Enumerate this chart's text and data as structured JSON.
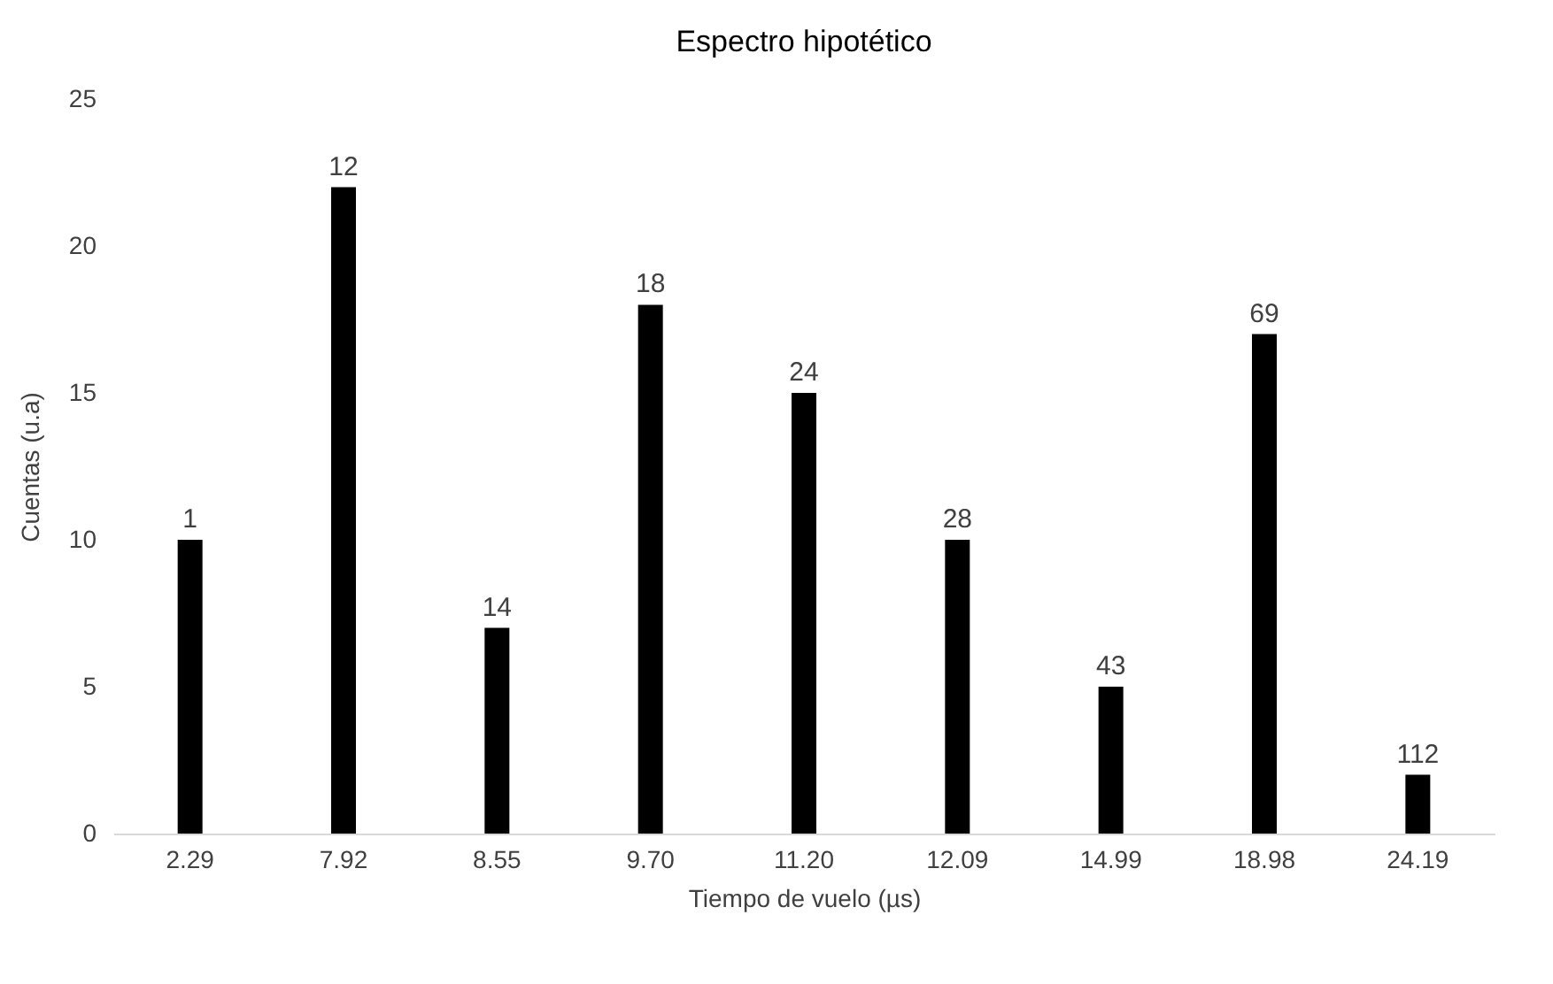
{
  "chart_data": {
    "type": "bar",
    "title": "Espectro hipotético",
    "xlabel": "Tiempo de vuelo (µs)",
    "ylabel": "Cuentas (u.a)",
    "categories": [
      "2.29",
      "7.92",
      "8.55",
      "9.70",
      "11.20",
      "12.09",
      "14.99",
      "18.98",
      "24.19"
    ],
    "values": [
      10,
      22,
      7,
      18,
      15,
      10,
      5,
      17,
      2
    ],
    "annotations": [
      {
        "text": "1",
        "x": "2.29",
        "y": 10
      },
      {
        "text": "12",
        "x": "7.92",
        "y": 22
      },
      {
        "text": "14",
        "x": "8.55",
        "y": 7
      },
      {
        "text": "18",
        "x": "9.70",
        "y": 18
      },
      {
        "text": "24",
        "x": "11.20",
        "y": 15
      },
      {
        "text": "28",
        "x": "12.09",
        "y": 10
      },
      {
        "text": "43",
        "x": "14.99",
        "y": 5
      },
      {
        "text": "69",
        "x": "18.98",
        "y": 17
      },
      {
        "text": "112",
        "x": "24.19",
        "y": 2
      }
    ],
    "color": "#000000",
    "ylim": [
      0,
      25
    ],
    "yticks": [
      0,
      5,
      10,
      15,
      20,
      25
    ],
    "grid": false
  }
}
